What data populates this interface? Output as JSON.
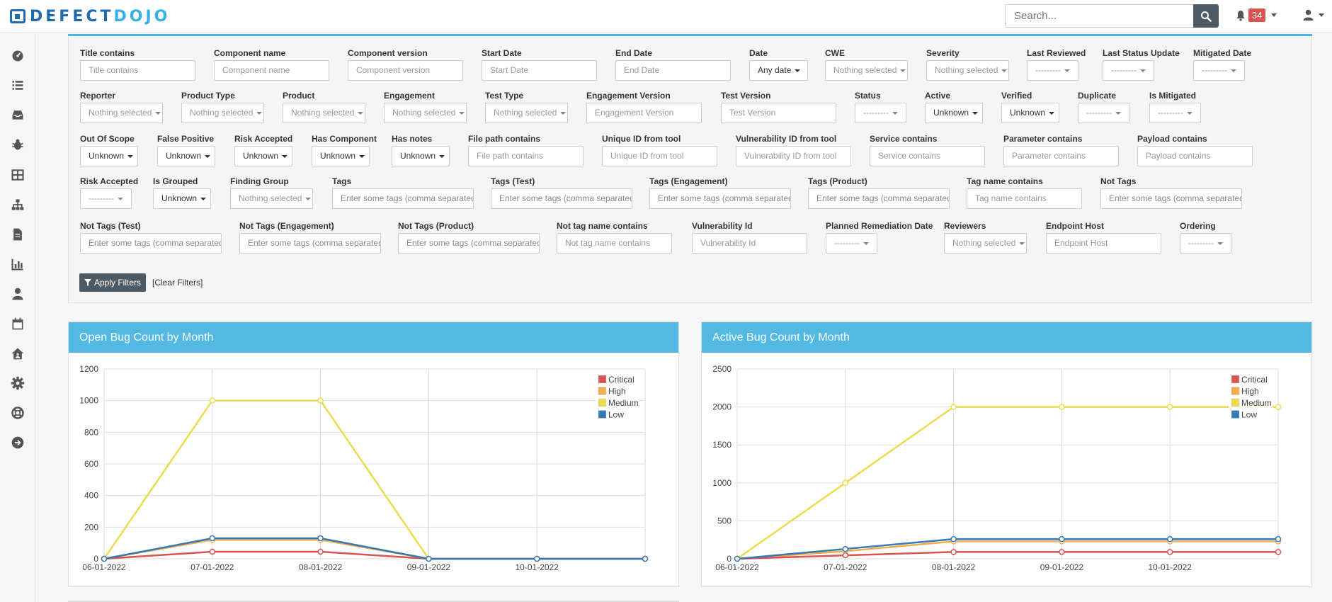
{
  "brand": {
    "logo_part1": "DEFECT",
    "logo_part2": "DOJO"
  },
  "topnav": {
    "search_placeholder": "Search...",
    "alert_count": "34"
  },
  "sidebar": {
    "icons": [
      "dashboard-icon",
      "list-icon",
      "inbox-icon",
      "bug-icon",
      "grid-icon",
      "sitemap-icon",
      "file-icon",
      "bar-chart-icon",
      "user-icon",
      "calendar-icon",
      "house-user-icon",
      "gear-icon",
      "life-ring-icon",
      "sign-out-icon"
    ]
  },
  "filters": {
    "rows": [
      [
        {
          "label": "Title contains",
          "kind": "text",
          "placeholder": "Title contains"
        },
        {
          "label": "Component name",
          "kind": "text",
          "placeholder": "Component name"
        },
        {
          "label": "Component version",
          "kind": "text",
          "placeholder": "Component version"
        },
        {
          "label": "Start Date",
          "kind": "text",
          "placeholder": "Start Date"
        },
        {
          "label": "End Date",
          "kind": "text",
          "placeholder": "End Date"
        },
        {
          "label": "Date",
          "kind": "select",
          "value": "Any date",
          "dark": true
        },
        {
          "label": "CWE",
          "kind": "select",
          "value": "Nothing selected"
        },
        {
          "label": "Severity",
          "kind": "select",
          "value": "Nothing selected"
        },
        {
          "label": "Last Reviewed",
          "kind": "select",
          "value": "---------"
        },
        {
          "label": "Last Status Update",
          "kind": "select",
          "value": "---------"
        },
        {
          "label": "Mitigated Date",
          "kind": "select",
          "value": "---------"
        }
      ],
      [
        {
          "label": "Reporter",
          "kind": "select",
          "value": "Nothing selected"
        },
        {
          "label": "Product Type",
          "kind": "select",
          "value": "Nothing selected"
        },
        {
          "label": "Product",
          "kind": "select",
          "value": "Nothing selected"
        },
        {
          "label": "Engagement",
          "kind": "select",
          "value": "Nothing selected"
        },
        {
          "label": "Test Type",
          "kind": "select",
          "value": "Nothing selected"
        },
        {
          "label": "Engagement Version",
          "kind": "text",
          "placeholder": "Engagement Version"
        },
        {
          "label": "Test Version",
          "kind": "text",
          "placeholder": "Test Version"
        },
        {
          "label": "Status",
          "kind": "select",
          "value": "---------"
        },
        {
          "label": "Active",
          "kind": "select",
          "value": "Unknown",
          "dark": true
        },
        {
          "label": "Verified",
          "kind": "select",
          "value": "Unknown",
          "dark": true
        },
        {
          "label": "Duplicate",
          "kind": "select",
          "value": "---------"
        },
        {
          "label": "Is Mitigated",
          "kind": "select",
          "value": "---------"
        }
      ],
      [
        {
          "label": "Out Of Scope",
          "kind": "select",
          "value": "Unknown",
          "dark": true
        },
        {
          "label": "False Positive",
          "kind": "select",
          "value": "Unknown",
          "dark": true
        },
        {
          "label": "Risk Accepted",
          "kind": "select",
          "value": "Unknown",
          "dark": true
        },
        {
          "label": "Has Component",
          "kind": "select",
          "value": "Unknown",
          "dark": true
        },
        {
          "label": "Has notes",
          "kind": "select",
          "value": "Unknown",
          "dark": true
        },
        {
          "label": "File path contains",
          "kind": "text",
          "placeholder": "File path contains"
        },
        {
          "label": "Unique ID from tool",
          "kind": "text",
          "placeholder": "Unique ID from tool"
        },
        {
          "label": "Vulnerability ID from tool",
          "kind": "text",
          "placeholder": "Vulnerability ID from tool"
        },
        {
          "label": "Service contains",
          "kind": "text",
          "placeholder": "Service contains"
        },
        {
          "label": "Parameter contains",
          "kind": "text",
          "placeholder": "Parameter contains"
        },
        {
          "label": "Payload contains",
          "kind": "text",
          "placeholder": "Payload contains"
        }
      ],
      [
        {
          "label": "Risk Accepted",
          "kind": "select",
          "value": "---------"
        },
        {
          "label": "Is Grouped",
          "kind": "select",
          "value": "Unknown",
          "dark": true
        },
        {
          "label": "Finding Group",
          "kind": "select",
          "value": "Nothing selected"
        },
        {
          "label": "Tags",
          "kind": "text",
          "placeholder": "Enter some tags (comma separated,",
          "dark": true
        },
        {
          "label": "Tags (Test)",
          "kind": "text",
          "placeholder": "Enter some tags (comma separated,",
          "dark": true
        },
        {
          "label": "Tags (Engagement)",
          "kind": "text",
          "placeholder": "Enter some tags (comma separated,",
          "dark": true
        },
        {
          "label": "Tags (Product)",
          "kind": "text",
          "placeholder": "Enter some tags (comma separated,",
          "dark": true
        },
        {
          "label": "Tag name contains",
          "kind": "text",
          "placeholder": "Tag name contains"
        },
        {
          "label": "Not Tags",
          "kind": "text",
          "placeholder": "Enter some tags (comma separated,",
          "dark": true
        }
      ],
      [
        {
          "label": "Not Tags (Test)",
          "kind": "text",
          "placeholder": "Enter some tags (comma separated,",
          "dark": true
        },
        {
          "label": "Not Tags (Engagement)",
          "kind": "text",
          "placeholder": "Enter some tags (comma separated,",
          "dark": true
        },
        {
          "label": "Not Tags (Product)",
          "kind": "text",
          "placeholder": "Enter some tags (comma separated,",
          "dark": true
        },
        {
          "label": "Not tag name contains",
          "kind": "text",
          "placeholder": "Not tag name contains"
        },
        {
          "label": "Vulnerability Id",
          "kind": "text",
          "placeholder": "Vulnerability Id"
        },
        {
          "label": "Planned Remediation Date",
          "kind": "select",
          "value": "---------"
        },
        {
          "label": "Reviewers",
          "kind": "select",
          "value": "Nothing selected"
        },
        {
          "label": "Endpoint Host",
          "kind": "text",
          "placeholder": "Endpoint Host"
        },
        {
          "label": "Ordering",
          "kind": "select",
          "value": "---------"
        }
      ]
    ],
    "apply_label": "Apply Filters",
    "clear_label": "[Clear Filters]"
  },
  "chart_data": [
    {
      "type": "line",
      "title": "Open Bug Count by Month",
      "categories": [
        "06-01-2022",
        "07-01-2022",
        "08-01-2022",
        "09-01-2022",
        "10-01-2022",
        ""
      ],
      "ylim": [
        0,
        1200
      ],
      "yticks": [
        0,
        200,
        400,
        600,
        800,
        1000,
        1200
      ],
      "series": [
        {
          "name": "Critical",
          "color": "#d9534f",
          "values": [
            0,
            45,
            45,
            0,
            0,
            0
          ]
        },
        {
          "name": "High",
          "color": "#f0ad4e",
          "values": [
            0,
            120,
            120,
            0,
            0,
            0
          ]
        },
        {
          "name": "Medium",
          "color": "#ebdd4f",
          "values": [
            0,
            1000,
            1000,
            0,
            0,
            0
          ]
        },
        {
          "name": "Low",
          "color": "#337ab7",
          "values": [
            0,
            130,
            130,
            0,
            0,
            0
          ]
        }
      ],
      "legend": "top-right",
      "grid": true
    },
    {
      "type": "line",
      "title": "Active Bug Count by Month",
      "categories": [
        "06-01-2022",
        "07-01-2022",
        "08-01-2022",
        "09-01-2022",
        "10-01-2022",
        ""
      ],
      "ylim": [
        0,
        2500
      ],
      "yticks": [
        0,
        500,
        1000,
        1500,
        2000,
        2500
      ],
      "series": [
        {
          "name": "Critical",
          "color": "#d9534f",
          "values": [
            0,
            45,
            90,
            90,
            90,
            90
          ]
        },
        {
          "name": "High",
          "color": "#f0ad4e",
          "values": [
            0,
            100,
            230,
            230,
            230,
            230
          ]
        },
        {
          "name": "Medium",
          "color": "#ebdd4f",
          "values": [
            0,
            1000,
            2000,
            2000,
            2000,
            2000
          ]
        },
        {
          "name": "Low",
          "color": "#337ab7",
          "values": [
            0,
            130,
            260,
            260,
            260,
            260
          ]
        }
      ],
      "legend": "top-right",
      "grid": true
    }
  ]
}
